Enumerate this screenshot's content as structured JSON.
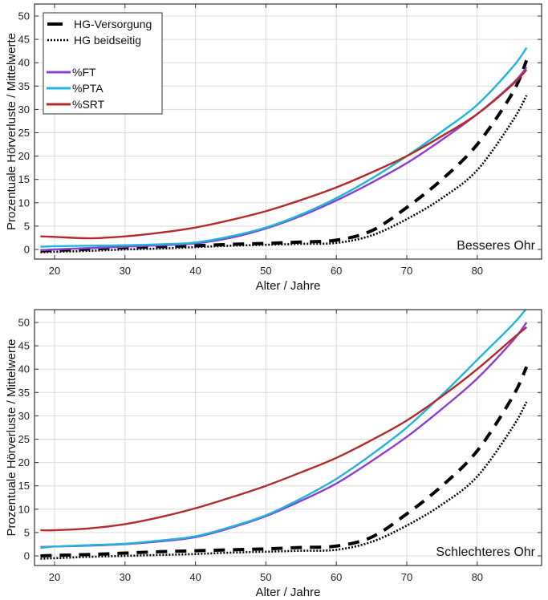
{
  "chart_data": [
    {
      "type": "line",
      "title": "",
      "annotation": "Besseres Ohr",
      "xlabel": "Alter / Jahre",
      "ylabel": "Prozentuale Hörverluste / Mittelwerte",
      "xlim": [
        18,
        88
      ],
      "ylim": [
        -2,
        52
      ],
      "xticks": [
        20,
        30,
        40,
        50,
        60,
        70,
        80
      ],
      "yticks": [
        0,
        5,
        10,
        15,
        20,
        25,
        30,
        35,
        40,
        45,
        50
      ],
      "grid": true,
      "legend": {
        "placement": "top-left",
        "entries": [
          {
            "label": "HG-Versorgung",
            "style": "dashed",
            "color": "#000000"
          },
          {
            "label": "HG beidseitig",
            "style": "dotted",
            "color": "#000000"
          },
          {
            "label": "",
            "style": "none",
            "color": ""
          },
          {
            "label": "%FT",
            "style": "solid",
            "color": "#8a3fd1"
          },
          {
            "label": "%PTA",
            "style": "solid",
            "color": "#1fb5dc"
          },
          {
            "label": "%SRT",
            "style": "solid",
            "color": "#b22a2a"
          }
        ]
      },
      "x": [
        18,
        20,
        25,
        30,
        35,
        40,
        45,
        50,
        55,
        60,
        65,
        70,
        75,
        80,
        85,
        87
      ],
      "series": [
        {
          "name": "HG-Versorgung",
          "style": "dashed",
          "color": "#000000",
          "values": [
            -0.3,
            -0.2,
            0.1,
            0.4,
            0.6,
            0.8,
            1.1,
            1.3,
            1.6,
            2.0,
            4.0,
            9.0,
            15.0,
            22.5,
            33.5,
            40.5
          ]
        },
        {
          "name": "HG beidseitig",
          "style": "dotted",
          "color": "#000000",
          "values": [
            -0.6,
            -0.5,
            -0.3,
            0,
            0.2,
            0.5,
            0.8,
            1.0,
            1.2,
            1.4,
            3.0,
            6.5,
            11.0,
            17.0,
            27.5,
            33.0
          ]
        },
        {
          "name": "%FT",
          "style": "solid",
          "color": "#8a3fd1",
          "values": [
            -0.2,
            0.0,
            0.3,
            0.6,
            0.9,
            1.3,
            2.5,
            4.5,
            7.2,
            10.5,
            14.3,
            18.5,
            23.5,
            29.0,
            35.5,
            39.0
          ]
        },
        {
          "name": "%PTA",
          "style": "solid",
          "color": "#1fb5dc",
          "values": [
            0.6,
            0.7,
            0.8,
            0.9,
            1.1,
            1.5,
            2.8,
            4.7,
            7.5,
            11.0,
            15.2,
            20.0,
            25.3,
            31.0,
            39.0,
            43.2
          ]
        },
        {
          "name": "%SRT",
          "style": "solid",
          "color": "#b22a2a",
          "values": [
            2.8,
            2.7,
            2.4,
            2.8,
            3.6,
            4.7,
            6.3,
            8.2,
            10.6,
            13.3,
            16.5,
            20.0,
            24.3,
            29.0,
            35.3,
            38.5
          ]
        }
      ]
    },
    {
      "type": "line",
      "title": "",
      "annotation": "Schlechteres Ohr",
      "xlabel": "Alter / Jahre",
      "ylabel": "Prozentuale Hörverluste / Mittelwerte",
      "xlim": [
        18,
        88
      ],
      "ylim": [
        -2,
        52
      ],
      "xticks": [
        20,
        30,
        40,
        50,
        60,
        70,
        80
      ],
      "yticks": [
        0,
        5,
        10,
        15,
        20,
        25,
        30,
        35,
        40,
        45,
        50
      ],
      "grid": true,
      "x": [
        18,
        20,
        25,
        30,
        35,
        40,
        45,
        50,
        55,
        60,
        65,
        70,
        75,
        80,
        85,
        87
      ],
      "series": [
        {
          "name": "HG-Versorgung",
          "style": "dashed",
          "color": "#000000",
          "values": [
            0.0,
            0.1,
            0.3,
            0.6,
            0.9,
            1.1,
            1.3,
            1.5,
            1.8,
            2.1,
            4.0,
            9.0,
            15.0,
            22.5,
            34.0,
            40.5
          ]
        },
        {
          "name": "HG beidseitig",
          "style": "dotted",
          "color": "#000000",
          "values": [
            -0.6,
            -0.5,
            -0.2,
            0,
            0.2,
            0.4,
            0.7,
            0.9,
            1.1,
            1.3,
            3.0,
            6.5,
            11.0,
            17.0,
            27.5,
            33.0
          ]
        },
        {
          "name": "%FT",
          "style": "solid",
          "color": "#8a3fd1",
          "values": [
            1.9,
            2.0,
            2.2,
            2.5,
            3.1,
            4.0,
            6.0,
            8.5,
            11.8,
            15.5,
            20.3,
            25.5,
            31.5,
            38.0,
            46.0,
            50.0
          ]
        },
        {
          "name": "%PTA",
          "style": "solid",
          "color": "#1fb5dc",
          "values": [
            1.7,
            2.0,
            2.3,
            2.6,
            3.3,
            4.2,
            6.2,
            8.7,
            12.3,
            16.5,
            21.7,
            27.5,
            34.5,
            42.0,
            49.5,
            53.0
          ]
        },
        {
          "name": "%SRT",
          "style": "solid",
          "color": "#b22a2a",
          "values": [
            5.5,
            5.5,
            5.9,
            6.8,
            8.3,
            10.2,
            12.5,
            15.0,
            17.9,
            21.0,
            24.8,
            29.0,
            34.2,
            40.0,
            46.5,
            49.0
          ]
        }
      ]
    }
  ]
}
